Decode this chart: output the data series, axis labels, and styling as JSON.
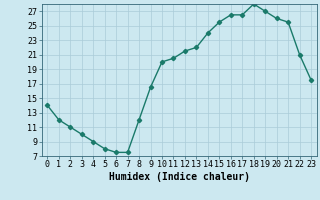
{
  "x": [
    0,
    1,
    2,
    3,
    4,
    5,
    6,
    7,
    8,
    9,
    10,
    11,
    12,
    13,
    14,
    15,
    16,
    17,
    18,
    19,
    20,
    21,
    22,
    23
  ],
  "y": [
    14,
    12,
    11,
    10,
    9,
    8,
    7.5,
    7.5,
    12,
    16.5,
    20,
    20.5,
    21.5,
    22,
    24,
    25.5,
    26.5,
    26.5,
    28,
    27,
    26,
    25.5,
    21,
    17.5
  ],
  "line_color": "#1a7a6a",
  "marker": "D",
  "marker_size": 2.2,
  "bg_color": "#cce8f0",
  "grid_color": "#aaccd8",
  "xlabel": "Humidex (Indice chaleur)",
  "xlim": [
    -0.5,
    23.5
  ],
  "ylim": [
    7,
    28
  ],
  "yticks": [
    7,
    9,
    11,
    13,
    15,
    17,
    19,
    21,
    23,
    25,
    27
  ],
  "xtick_labels": [
    "0",
    "1",
    "2",
    "3",
    "4",
    "5",
    "6",
    "7",
    "8",
    "9",
    "10",
    "11",
    "12",
    "13",
    "14",
    "15",
    "16",
    "17",
    "18",
    "19",
    "20",
    "21",
    "22",
    "23"
  ],
  "xlabel_fontsize": 7,
  "tick_fontsize": 6,
  "line_width": 1.0
}
